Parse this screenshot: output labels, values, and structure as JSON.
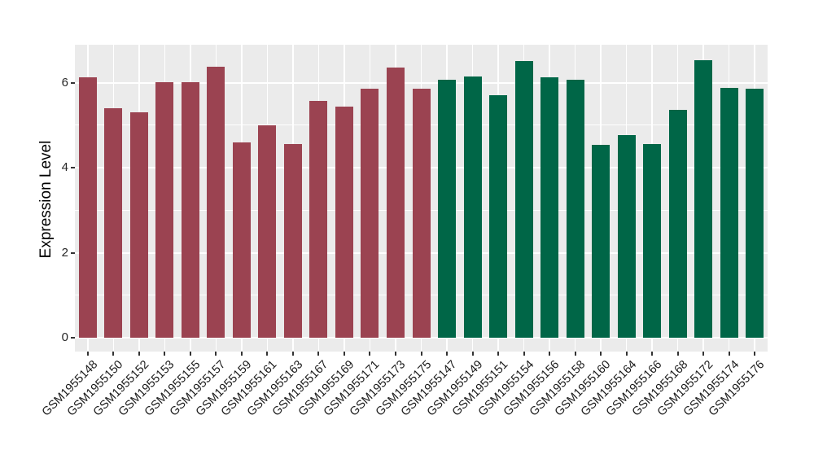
{
  "chart_data": {
    "type": "bar",
    "title": "",
    "xlabel": "",
    "ylabel": "Expression Level",
    "ylim": [
      0,
      6.89
    ],
    "yticks_major": [
      0,
      2,
      4,
      6
    ],
    "yticks_minor": [
      1,
      3,
      5
    ],
    "legend_position": "none",
    "panel_background": "#EBEBEB",
    "gridline_color": "#FFFFFF",
    "tick_color": "#333333",
    "group_colors": {
      "group1": "#9B4351",
      "group2": "#006647"
    },
    "bars": [
      {
        "label": "GSM1955148",
        "value": 6.13,
        "group": "group1"
      },
      {
        "label": "GSM1955150",
        "value": 5.4,
        "group": "group1"
      },
      {
        "label": "GSM1955152",
        "value": 5.31,
        "group": "group1"
      },
      {
        "label": "GSM1955153",
        "value": 6.01,
        "group": "group1"
      },
      {
        "label": "GSM1955155",
        "value": 6.01,
        "group": "group1"
      },
      {
        "label": "GSM1955157",
        "value": 6.37,
        "group": "group1"
      },
      {
        "label": "GSM1955159",
        "value": 4.59,
        "group": "group1"
      },
      {
        "label": "GSM1955161",
        "value": 4.99,
        "group": "group1"
      },
      {
        "label": "GSM1955163",
        "value": 4.56,
        "group": "group1"
      },
      {
        "label": "GSM1955167",
        "value": 5.57,
        "group": "group1"
      },
      {
        "label": "GSM1955169",
        "value": 5.44,
        "group": "group1"
      },
      {
        "label": "GSM1955171",
        "value": 5.86,
        "group": "group1"
      },
      {
        "label": "GSM1955173",
        "value": 6.35,
        "group": "group1"
      },
      {
        "label": "GSM1955175",
        "value": 5.85,
        "group": "group1"
      },
      {
        "label": "GSM1955147",
        "value": 6.07,
        "group": "group2"
      },
      {
        "label": "GSM1955149",
        "value": 6.15,
        "group": "group2"
      },
      {
        "label": "GSM1955151",
        "value": 5.7,
        "group": "group2"
      },
      {
        "label": "GSM1955154",
        "value": 6.5,
        "group": "group2"
      },
      {
        "label": "GSM1955156",
        "value": 6.13,
        "group": "group2"
      },
      {
        "label": "GSM1955158",
        "value": 6.06,
        "group": "group2"
      },
      {
        "label": "GSM1955160",
        "value": 4.54,
        "group": "group2"
      },
      {
        "label": "GSM1955164",
        "value": 4.77,
        "group": "group2"
      },
      {
        "label": "GSM1955166",
        "value": 4.55,
        "group": "group2"
      },
      {
        "label": "GSM1955168",
        "value": 5.36,
        "group": "group2"
      },
      {
        "label": "GSM1955172",
        "value": 6.53,
        "group": "group2"
      },
      {
        "label": "GSM1955174",
        "value": 5.87,
        "group": "group2"
      },
      {
        "label": "GSM1955176",
        "value": 5.86,
        "group": "group2"
      }
    ]
  }
}
